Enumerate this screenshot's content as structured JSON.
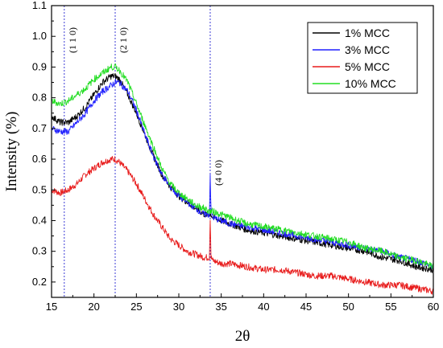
{
  "chart_data": {
    "type": "line",
    "title": "",
    "xlabel": "2θ",
    "ylabel": "Intensity (%)",
    "xlim": [
      15,
      60
    ],
    "ylim": [
      0.15,
      1.1
    ],
    "x_ticks": [
      15,
      20,
      25,
      30,
      35,
      40,
      45,
      50,
      55,
      60
    ],
    "x_tick_labels": [
      "15",
      "20",
      "25",
      "30",
      "35",
      "40",
      "45",
      "50",
      "55",
      "60"
    ],
    "y_ticks": [
      0.2,
      0.3,
      0.4,
      0.5,
      0.6,
      0.7,
      0.8,
      0.9,
      1.0,
      1.1
    ],
    "y_tick_labels": [
      "0.2",
      "0.3",
      "0.4",
      "0.5",
      "0.6",
      "0.7",
      "0.8",
      "0.9",
      "1.0",
      "1.1"
    ],
    "legend_position": "top-right",
    "grid": false,
    "reference_lines": [
      {
        "x": 16.5,
        "label": "(1 1 0)"
      },
      {
        "x": 22.5,
        "label": "(2 1 0)"
      },
      {
        "x": 33.7,
        "label": "(4 0 0)"
      }
    ],
    "x": [
      15,
      16,
      17,
      18,
      19,
      20,
      21,
      22,
      22.5,
      23,
      24,
      25,
      26,
      27,
      28,
      29,
      30,
      31,
      32,
      33,
      33.6,
      33.7,
      33.8,
      34,
      35,
      36,
      38,
      40,
      42,
      44,
      46,
      48,
      50,
      52,
      54,
      56,
      58,
      60
    ],
    "series": [
      {
        "name": "1% MCC",
        "color": "#000000",
        "values": [
          0.74,
          0.72,
          0.72,
          0.74,
          0.77,
          0.81,
          0.85,
          0.87,
          0.87,
          0.86,
          0.81,
          0.75,
          0.68,
          0.61,
          0.55,
          0.51,
          0.48,
          0.46,
          0.44,
          0.42,
          0.42,
          0.42,
          0.42,
          0.41,
          0.4,
          0.39,
          0.37,
          0.36,
          0.35,
          0.34,
          0.33,
          0.32,
          0.31,
          0.3,
          0.28,
          0.27,
          0.25,
          0.24
        ]
      },
      {
        "name": "3% MCC",
        "color": "#1f1fff",
        "values": [
          0.7,
          0.69,
          0.69,
          0.72,
          0.75,
          0.79,
          0.82,
          0.84,
          0.85,
          0.85,
          0.82,
          0.76,
          0.68,
          0.61,
          0.55,
          0.51,
          0.48,
          0.46,
          0.44,
          0.42,
          0.42,
          0.55,
          0.43,
          0.41,
          0.4,
          0.39,
          0.38,
          0.37,
          0.36,
          0.35,
          0.34,
          0.33,
          0.32,
          0.31,
          0.3,
          0.28,
          0.27,
          0.25
        ]
      },
      {
        "name": "5% MCC",
        "color": "#e81c1c",
        "values": [
          0.5,
          0.49,
          0.5,
          0.52,
          0.55,
          0.57,
          0.59,
          0.6,
          0.6,
          0.59,
          0.56,
          0.52,
          0.47,
          0.42,
          0.38,
          0.34,
          0.32,
          0.3,
          0.29,
          0.28,
          0.28,
          0.41,
          0.28,
          0.27,
          0.26,
          0.26,
          0.25,
          0.24,
          0.24,
          0.23,
          0.22,
          0.22,
          0.21,
          0.2,
          0.19,
          0.19,
          0.18,
          0.17
        ]
      },
      {
        "name": "10% MCC",
        "color": "#22dd22",
        "values": [
          0.79,
          0.78,
          0.79,
          0.81,
          0.83,
          0.86,
          0.88,
          0.9,
          0.9,
          0.89,
          0.85,
          0.78,
          0.71,
          0.64,
          0.57,
          0.52,
          0.49,
          0.47,
          0.45,
          0.44,
          0.43,
          0.43,
          0.43,
          0.43,
          0.42,
          0.41,
          0.39,
          0.38,
          0.37,
          0.36,
          0.35,
          0.34,
          0.33,
          0.31,
          0.3,
          0.28,
          0.27,
          0.25
        ]
      }
    ]
  }
}
